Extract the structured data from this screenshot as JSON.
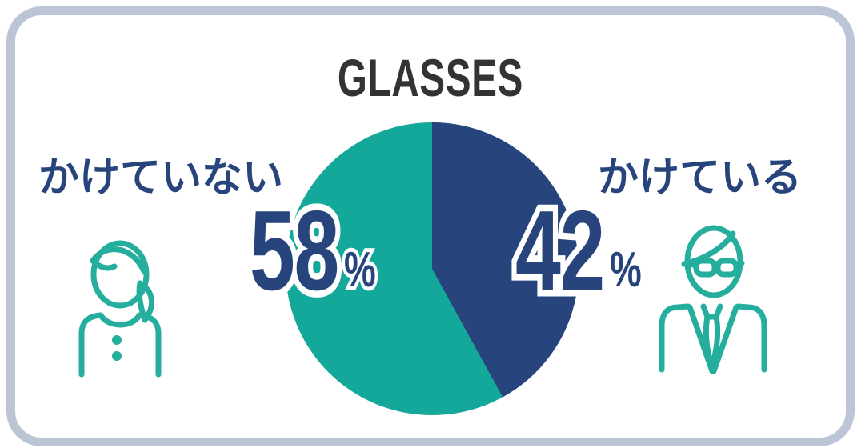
{
  "title": "GLASSES",
  "chart_data": {
    "type": "pie",
    "title": "GLASSES",
    "slices": [
      {
        "label": "かけている",
        "value": 42,
        "display": "42",
        "unit": "%",
        "color": "#27457c"
      },
      {
        "label": "かけていない",
        "value": 58,
        "display": "58",
        "unit": "%",
        "color": "#14a89a"
      }
    ],
    "start_angle_deg": 0,
    "direction": "clockwise",
    "legend_position": "sides",
    "value_labels_on_chart": true
  },
  "icons": {
    "left": "woman-without-glasses-icon",
    "right": "man-with-glasses-icon"
  },
  "colors": {
    "slice_wearing": "#27457c",
    "slice_not_wearing": "#14a89a",
    "label_text": "#27457c",
    "value_text": "#27457c",
    "value_outline": "#ffffff",
    "title_text": "#333333",
    "icon_stroke": "#25ae9d",
    "card_border": "#bcc5d6",
    "card_background": "#ffffff"
  }
}
